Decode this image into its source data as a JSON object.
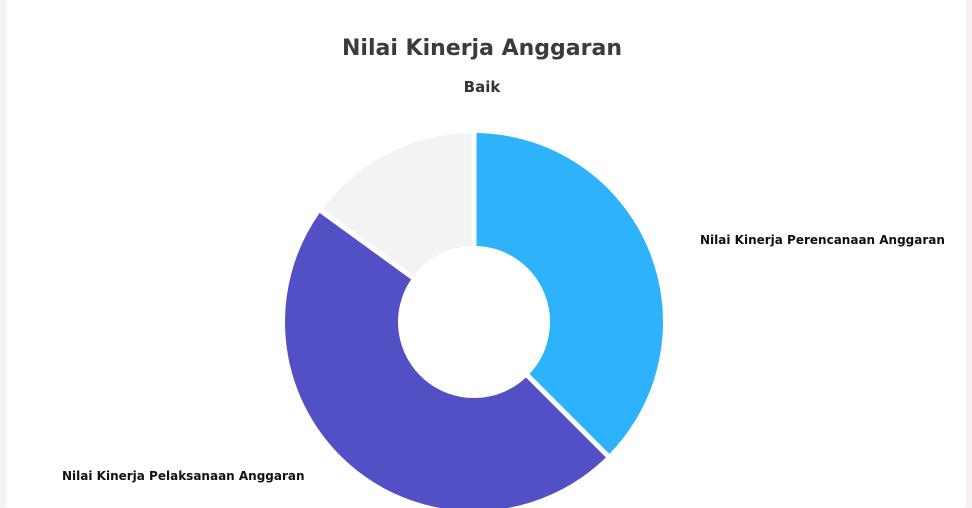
{
  "chart_data": {
    "type": "pie",
    "title": "Nilai Kinerja Anggaran",
    "subtitle": "Baik",
    "donut": true,
    "series": [
      {
        "name": "Nilai Kinerja Perencanaan Anggaran",
        "value": 37.5,
        "color": "#2eb2fc"
      },
      {
        "name": "Nilai Kinerja Pelaksanaan Anggaran",
        "value": 47.5,
        "color": "#5350c6"
      },
      {
        "name": "",
        "value": 15.0,
        "color": "#f3f3f4"
      }
    ]
  }
}
